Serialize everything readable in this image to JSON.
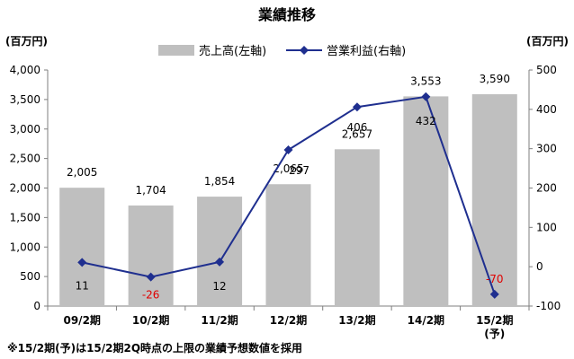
{
  "chart_data": {
    "type": "bar",
    "title": "業績推移",
    "categories": [
      "09/2期",
      "10/2期",
      "11/2期",
      "12/2期",
      "13/2期",
      "14/2期",
      "15/2期"
    ],
    "category_notes": [
      "",
      "",
      "",
      "",
      "",
      "",
      "(予)"
    ],
    "y_left_unit": "(百万円)",
    "y_right_unit": "(百万円)",
    "y_left_lim": [
      0,
      4000
    ],
    "y_left_ticks": [
      "0",
      "500",
      "1,000",
      "1,500",
      "2,000",
      "2,500",
      "3,000",
      "3,500",
      "4,000"
    ],
    "y_right_lim": [
      -100,
      500
    ],
    "y_right_ticks": [
      "-100",
      "0",
      "100",
      "200",
      "300",
      "400",
      "500"
    ],
    "legend_position": "top",
    "grid": false,
    "series": [
      {
        "name": "売上高(左軸)",
        "type": "bar",
        "axis": "left",
        "color": "#bfbfbf",
        "values": [
          2005,
          1704,
          1854,
          2065,
          2657,
          3553,
          3590
        ],
        "labels": [
          "2,005",
          "1,704",
          "1,854",
          "2,065",
          "2,657",
          "3,553",
          "3,590"
        ]
      },
      {
        "name": "営業利益(右軸)",
        "type": "line",
        "axis": "right",
        "color": "#1f2f8f",
        "values": [
          11,
          -26,
          12,
          297,
          406,
          432,
          -70
        ],
        "labels": [
          "11",
          "-26",
          "12",
          "297",
          "406",
          "432",
          "-70"
        ],
        "negative_label_color": "#e00000"
      }
    ],
    "footnote": "※15/2期(予)は15/2期2Q時点の上限の業績予想数値を採用"
  }
}
